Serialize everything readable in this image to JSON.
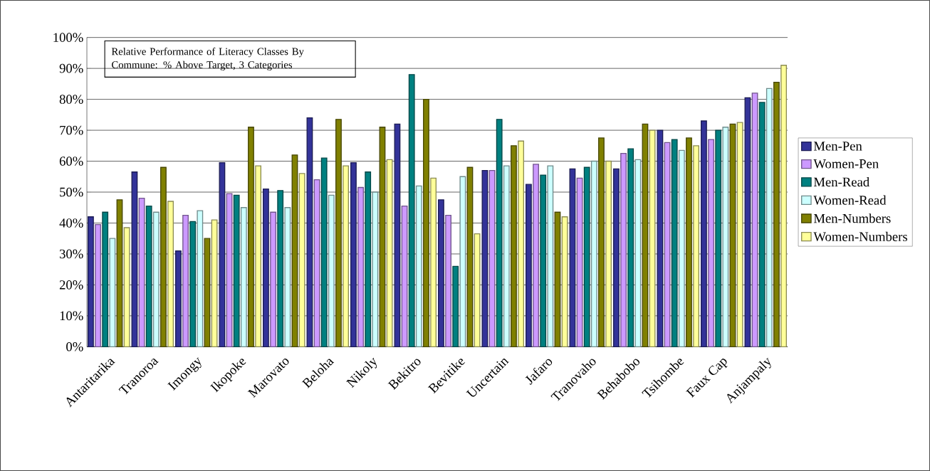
{
  "chart_data": {
    "type": "bar",
    "title": "Relative Performance of Literacy Classes By Commune: % Above Target, 3 Categories",
    "categories": [
      "Antaritarika",
      "Tranoroa",
      "Imongy",
      "Ikopoke",
      "Marovato",
      "Beloha",
      "Nikoly",
      "Bekitro",
      "Bevitike",
      "Uncertain",
      "Jafaro",
      "Tranovaho",
      "Behabobo",
      "Tsihombe",
      "Faux Cap",
      "Anjampaly"
    ],
    "series": [
      {
        "name": "Men-Pen",
        "color": "#333399",
        "values": [
          42,
          56.5,
          31,
          59.5,
          51,
          74,
          59.5,
          72,
          47.5,
          57,
          52.5,
          57.5,
          57.5,
          70,
          73,
          80.5
        ]
      },
      {
        "name": "Women-Pen",
        "color": "#cc99ff",
        "values": [
          39.5,
          48,
          42.5,
          49.5,
          43.5,
          54,
          51.5,
          45.5,
          42.5,
          57,
          59,
          54.5,
          62.5,
          66,
          67,
          82
        ]
      },
      {
        "name": "Men-Read",
        "color": "#008080",
        "values": [
          43.5,
          45.5,
          40.5,
          49,
          50.5,
          61,
          56.5,
          88,
          26,
          73.5,
          55.5,
          58,
          64,
          67,
          70,
          79
        ]
      },
      {
        "name": "Women-Read",
        "color": "#ccffff",
        "values": [
          35,
          43.5,
          44,
          45,
          45,
          49,
          50,
          52,
          55,
          58.5,
          58.5,
          60,
          60.5,
          63.5,
          71,
          83.5
        ]
      },
      {
        "name": "Men-Numbers",
        "color": "#808000",
        "values": [
          47.5,
          58,
          35,
          71,
          62,
          73.5,
          71,
          80,
          58,
          65,
          43.5,
          67.5,
          72,
          67.5,
          72,
          85.5
        ]
      },
      {
        "name": "Women-Numbers",
        "color": "#ffff99",
        "values": [
          38.5,
          47,
          41,
          58.5,
          56,
          58.5,
          60.5,
          54.5,
          36.5,
          66.5,
          42,
          60,
          70,
          65,
          72.5,
          91
        ]
      }
    ],
    "ylim": [
      0,
      100
    ],
    "yticks": [
      {
        "value": 0,
        "label": "0%"
      },
      {
        "value": 10,
        "label": "10%"
      },
      {
        "value": 20,
        "label": "20%"
      },
      {
        "value": 30,
        "label": "30%"
      },
      {
        "value": 40,
        "label": "40%"
      },
      {
        "value": 50,
        "label": "50%"
      },
      {
        "value": 60,
        "label": "60%"
      },
      {
        "value": 70,
        "label": "70%"
      },
      {
        "value": 80,
        "label": "80%"
      },
      {
        "value": 90,
        "label": "90%"
      },
      {
        "value": 100,
        "label": "100%"
      }
    ],
    "grid": "y",
    "legend": "right"
  }
}
